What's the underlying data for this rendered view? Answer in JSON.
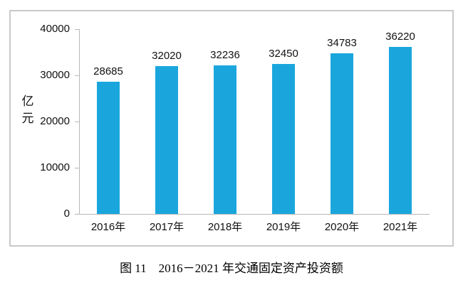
{
  "chart_data": {
    "type": "bar",
    "caption": "图 11　2016－2021 年交通固定资产投资额",
    "categories": [
      "2016年",
      "2017年",
      "2018年",
      "2019年",
      "2020年",
      "2021年"
    ],
    "values": [
      28685,
      32020,
      32236,
      32450,
      34783,
      36220
    ],
    "value_labels": [
      "28685",
      "32020",
      "32236",
      "32450",
      "34783",
      "36220"
    ],
    "ylabel": "亿元",
    "ylabel_lines": {
      "0": "亿",
      "1": "元"
    },
    "yticks": [
      0,
      10000,
      20000,
      30000,
      40000
    ],
    "ytick_labels": [
      "0",
      "10000",
      "20000",
      "30000",
      "40000"
    ],
    "ylim": [
      0,
      40000
    ],
    "grid": false,
    "legend": "none",
    "bar_color": "#1aa6dd",
    "axis_color": "#b7b7b7",
    "frame_color": "#c9c9c9",
    "text_color": "#111111"
  }
}
